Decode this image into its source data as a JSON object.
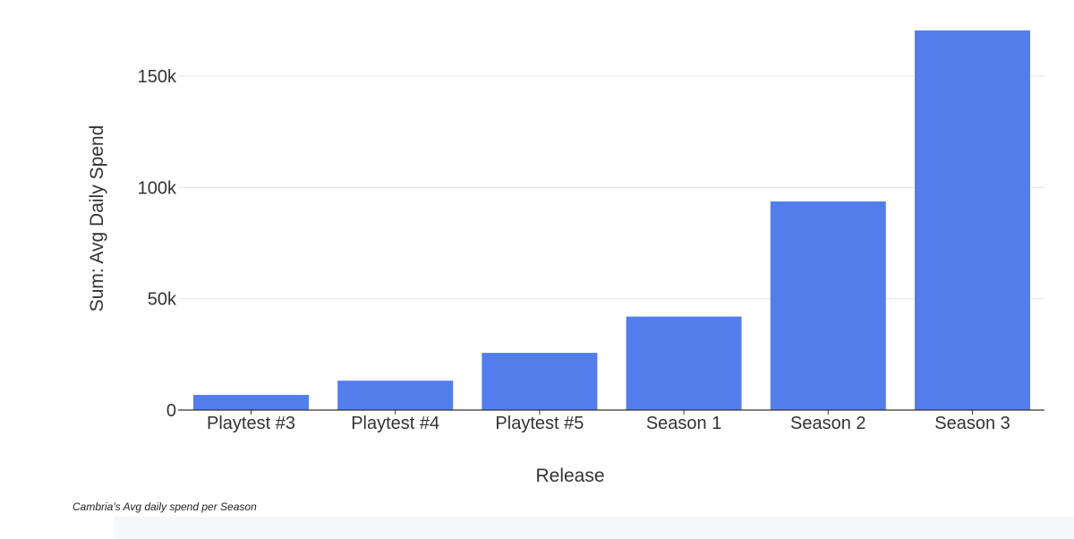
{
  "chart_data": {
    "type": "bar",
    "categories": [
      "Playtest #3",
      "Playtest #4",
      "Playtest #5",
      "Season 1",
      "Season 2",
      "Season 3"
    ],
    "values": [
      6800,
      13200,
      25700,
      42000,
      93700,
      170500
    ],
    "xlabel": "Release",
    "ylabel": "Sum: Avg Daily Spend",
    "ylim": [
      0,
      170500
    ],
    "yticks": [
      0,
      50000,
      100000,
      150000
    ],
    "ytick_labels": [
      "0",
      "50k",
      "100k",
      "150k"
    ],
    "grid": true,
    "bar_color": "#537deb"
  },
  "caption": "Cambria's Avg daily spend per Season"
}
